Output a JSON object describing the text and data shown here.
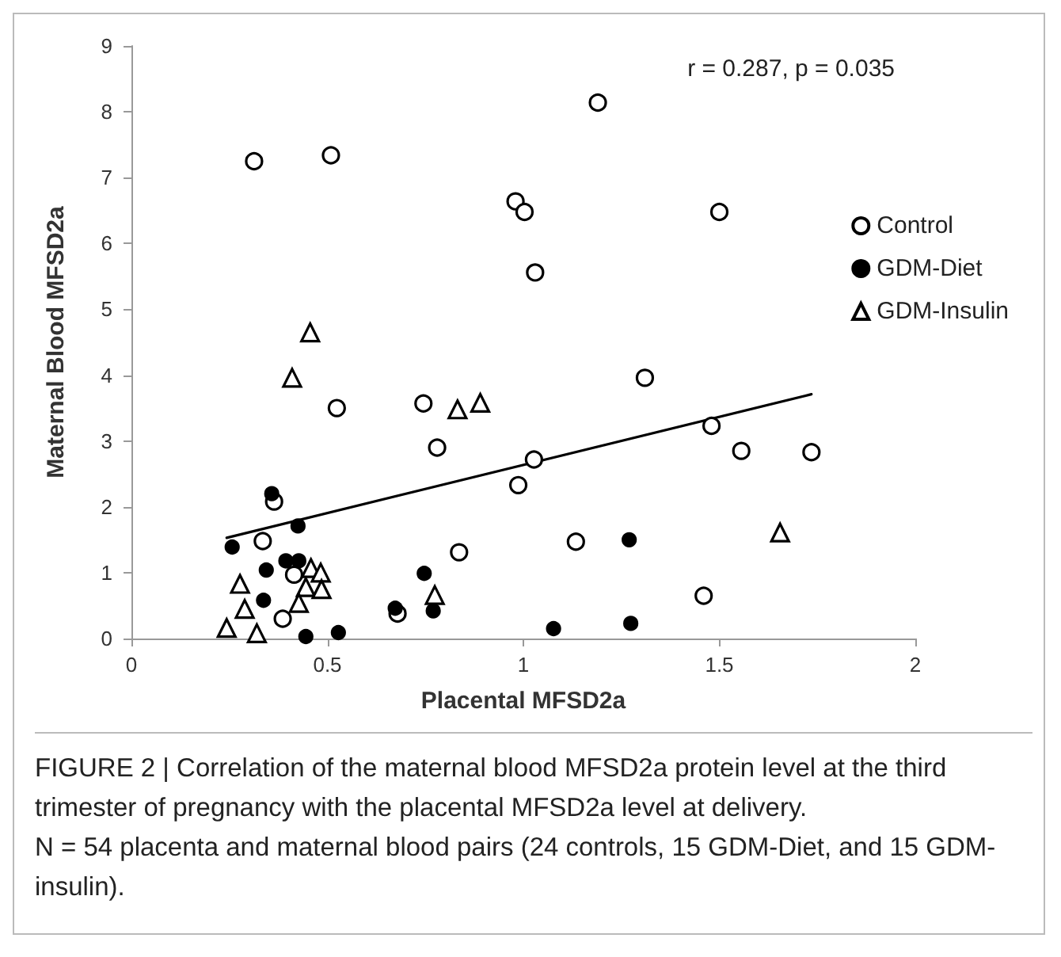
{
  "chart_data": {
    "type": "scatter",
    "xlabel": "Placental MFSD2a",
    "ylabel": "Maternal Blood MFSD2a",
    "xlim": [
      0,
      2
    ],
    "xticks": [
      0,
      0.5,
      1,
      1.5,
      2
    ],
    "ylim": [
      0,
      9
    ],
    "yticks": [
      0,
      1,
      2,
      3,
      4,
      5,
      6,
      7,
      8,
      9
    ],
    "grid": false,
    "legend": "right",
    "annotations": [
      "r = 0.287, p = 0.035",
      "FIGURE 2 | Correlation of the maternal blood MFSD2a protein level at the third trimester of pregnancy with the placental MFSD2a level at delivery.",
      "N = 54 placenta and maternal blood pairs (24 controls, 15 GDM-Diet, and 15 GDM-insulin)."
    ],
    "series": [
      {
        "name": "Control",
        "color": "#ffffff",
        "marker": "circle",
        "x": [
          0.313,
          0.509,
          1.19,
          0.98,
          1.003,
          1.03,
          0.524,
          0.745,
          0.78,
          1.027,
          1.5,
          1.31,
          1.48,
          1.556,
          1.735,
          0.364,
          0.335,
          0.415,
          0.386,
          0.679,
          0.987,
          0.836,
          1.134,
          1.46
        ],
        "values": [
          7.25,
          7.34,
          8.14,
          6.64,
          6.48,
          5.56,
          3.5,
          3.57,
          2.9,
          2.72,
          6.48,
          3.96,
          3.23,
          2.85,
          2.83,
          2.08,
          1.48,
          0.97,
          0.3,
          0.38,
          2.33,
          1.31,
          1.47,
          0.65
        ]
      },
      {
        "name": "GDM-Diet",
        "color": "#000000",
        "marker": "circle",
        "x": [
          0.358,
          0.425,
          0.257,
          0.394,
          0.427,
          0.344,
          0.337,
          0.445,
          0.528,
          0.673,
          0.747,
          0.77,
          1.27,
          1.077,
          1.274
        ],
        "values": [
          2.2,
          1.71,
          1.39,
          1.18,
          1.18,
          1.04,
          0.58,
          0.03,
          0.09,
          0.46,
          0.99,
          0.42,
          1.5,
          0.15,
          0.23
        ]
      },
      {
        "name": "GDM-Insulin",
        "color": "#ffffff",
        "marker": "triangle",
        "x": [
          0.456,
          0.41,
          0.832,
          0.89,
          0.458,
          0.483,
          0.277,
          0.445,
          0.485,
          0.289,
          0.427,
          0.243,
          0.32,
          0.774,
          1.655
        ],
        "values": [
          4.65,
          3.96,
          3.48,
          3.58,
          1.07,
          1.0,
          0.83,
          0.78,
          0.75,
          0.45,
          0.54,
          0.16,
          0.08,
          0.66,
          1.61
        ]
      },
      {
        "type": "line",
        "color": "#000000",
        "marker": "none",
        "line_style": "solid",
        "x": [
          0.243,
          1.735
        ],
        "values": [
          1.53,
          3.71
        ]
      }
    ]
  }
}
